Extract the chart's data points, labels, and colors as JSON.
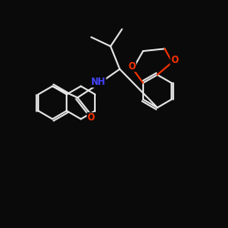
{
  "background_color": "#0a0a0a",
  "bond_color": "#e8e8e8",
  "atom_colors": {
    "O": "#ff3300",
    "N": "#4444ff",
    "H": "#e8e8e8",
    "C": "#e8e8e8"
  },
  "figsize": [
    2.5,
    2.5
  ],
  "dpi": 100,
  "lw": 1.3,
  "fontsize": 7.0
}
